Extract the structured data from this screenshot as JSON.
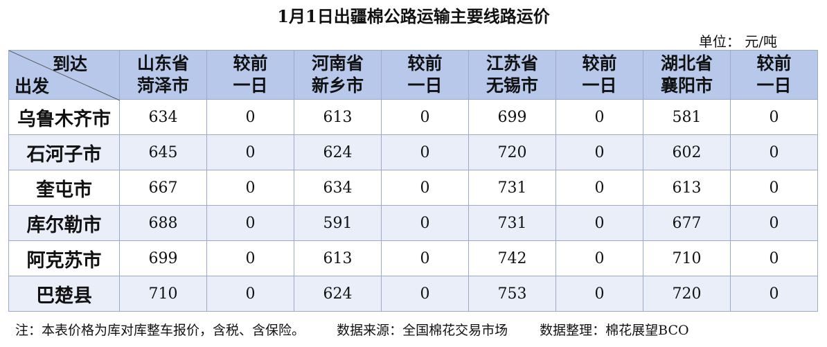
{
  "header": {
    "title": "1月1日出疆棉公路运输主要线路运价",
    "unit": "单位：  元/吨"
  },
  "table": {
    "corner_top": "到达",
    "corner_bottom": "出发",
    "columns": [
      [
        "山东省",
        "菏泽市"
      ],
      [
        "较前",
        "一日"
      ],
      [
        "河南省",
        "新乡市"
      ],
      [
        "较前",
        "一日"
      ],
      [
        "江苏省",
        "无锡市"
      ],
      [
        "较前",
        "一日"
      ],
      [
        "湖北省",
        "襄阳市"
      ],
      [
        "较前",
        "一日"
      ]
    ],
    "rows": [
      {
        "origin": "乌鲁木齐市",
        "values": [
          634,
          0,
          613,
          0,
          699,
          0,
          581,
          0
        ]
      },
      {
        "origin": "石河子市",
        "values": [
          645,
          0,
          624,
          0,
          720,
          0,
          602,
          0
        ]
      },
      {
        "origin": "奎屯市",
        "values": [
          667,
          0,
          634,
          0,
          731,
          0,
          613,
          0
        ]
      },
      {
        "origin": "库尔勒市",
        "values": [
          688,
          0,
          591,
          0,
          731,
          0,
          677,
          0
        ]
      },
      {
        "origin": "阿克苏市",
        "values": [
          699,
          0,
          613,
          0,
          742,
          0,
          710,
          0
        ]
      },
      {
        "origin": "巴楚县",
        "values": [
          710,
          0,
          624,
          0,
          753,
          0,
          720,
          0
        ]
      }
    ]
  },
  "footer": {
    "note": "注：本表价格为库对库整车报价，含税、含保险。",
    "source": "数据来源：全国棉花交易市场",
    "organizer": "数据整理：棉花展望BCO"
  }
}
